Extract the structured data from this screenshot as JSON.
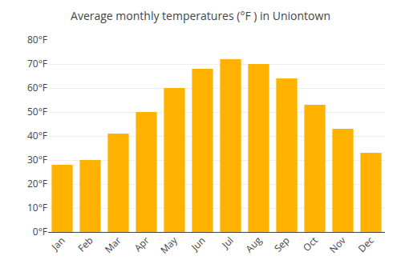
{
  "chart_data": {
    "type": "bar",
    "title": "Average monthly temperatures (°F ) in Uniontown",
    "categories": [
      "Jan",
      "Feb",
      "Mar",
      "Apr",
      "May",
      "Jun",
      "Jul",
      "Aug",
      "Sep",
      "Oct",
      "Nov",
      "Dec"
    ],
    "values": [
      28,
      30,
      41,
      50,
      60,
      68,
      72,
      70,
      64,
      53,
      43,
      33
    ],
    "color": "#FFB300",
    "ylim": [
      0,
      80
    ],
    "yticks": [
      {
        "value": 0,
        "label": "0°F"
      },
      {
        "value": 10,
        "label": "10°F"
      },
      {
        "value": 20,
        "label": "20°F"
      },
      {
        "value": 30,
        "label": "30°F"
      },
      {
        "value": 40,
        "label": "40°F"
      },
      {
        "value": 50,
        "label": "50°F"
      },
      {
        "value": 60,
        "label": "60°F"
      },
      {
        "value": 70,
        "label": "70°F"
      },
      {
        "value": 80,
        "label": "80°F"
      }
    ],
    "grid": true
  }
}
